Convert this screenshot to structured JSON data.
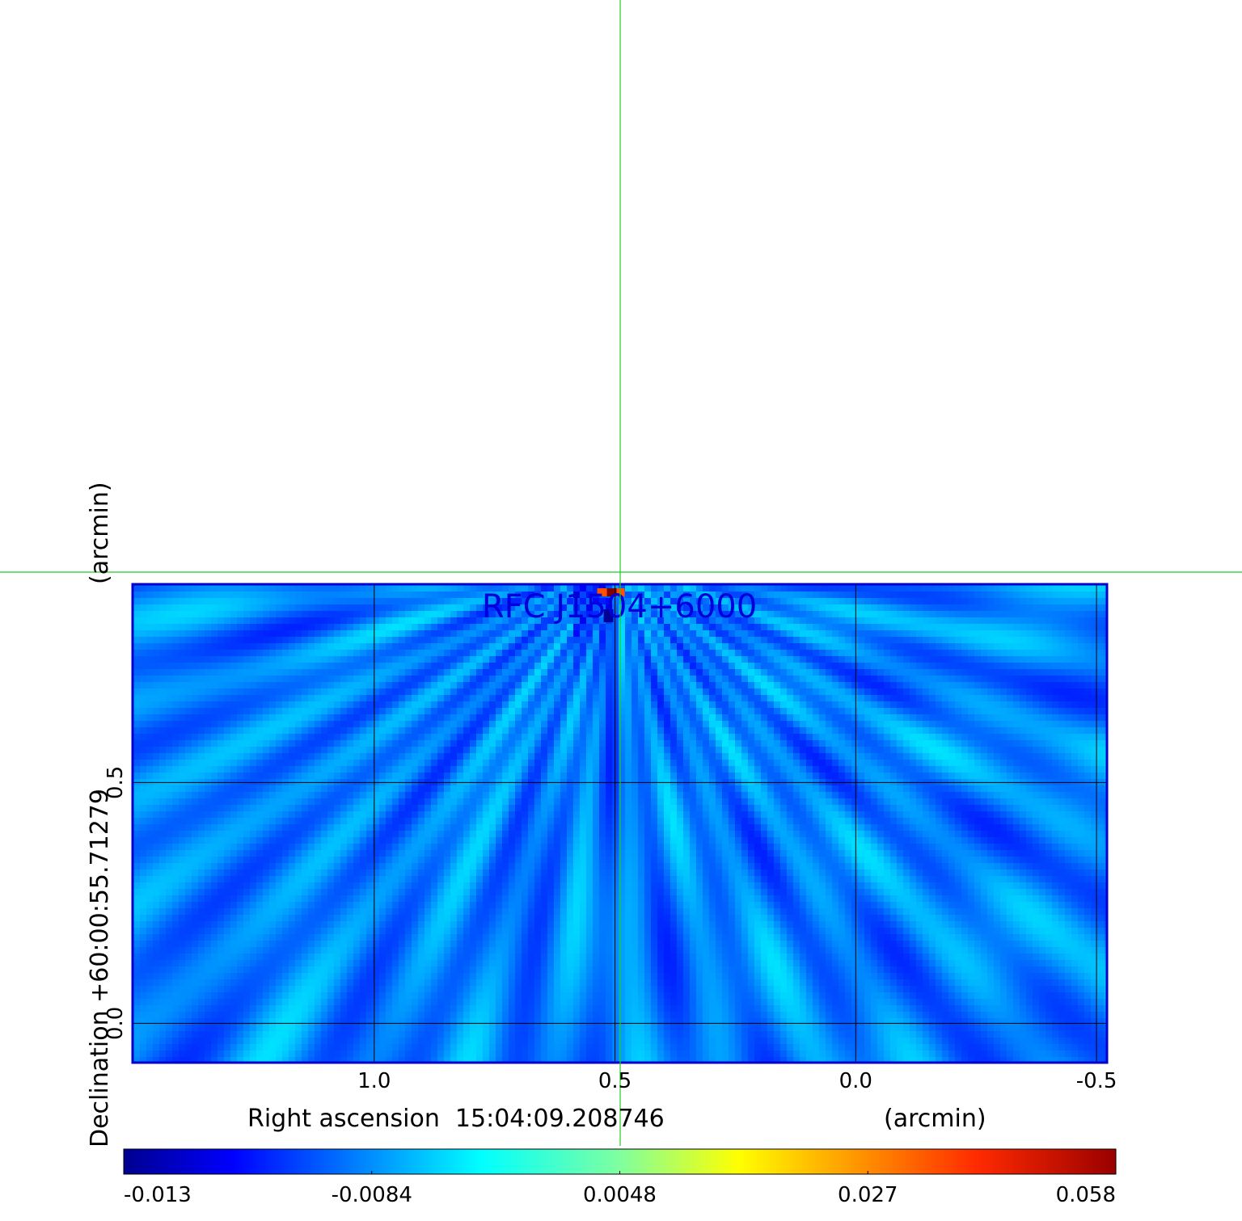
{
  "chart_data": {
    "type": "heatmap",
    "title": "RFC J1504+6000",
    "xlabel": "Right ascension  15:04:09.208746",
    "xunit": "(arcmin)",
    "ylabel": "Declination  +60:00:55.71279",
    "yunit": "(arcmin)",
    "x_ticks": [
      "1.0",
      "0.5",
      "0.0",
      "-0.5"
    ],
    "x_tick_values": [
      1.0,
      0.5,
      0.0,
      -0.5
    ],
    "y_ticks": [
      "0.0",
      "0.5"
    ],
    "y_tick_values": [
      0.0,
      0.5
    ],
    "xlim": [
      1.5,
      -0.52
    ],
    "ylim": [
      -0.08,
      0.91
    ],
    "grid": true,
    "crosshair": {
      "ra_offset": 0.5,
      "dec_offset": 0.94,
      "color": "#22cc22"
    },
    "colormap": "jet",
    "colorbar": {
      "ticks": [
        "-0.013",
        "-0.0084",
        "0.0048",
        "0.027",
        "0.058"
      ],
      "tick_values": [
        -0.013,
        -0.0084,
        0.0048,
        0.027,
        0.058
      ],
      "range": [
        -0.013,
        0.058
      ]
    },
    "source_peak": {
      "ra_offset": 0.5,
      "dec_offset": 0.9,
      "value": 0.058
    },
    "background_level": 0.0048,
    "frame_color": "#0000cc",
    "title_color": "#0000dd"
  }
}
